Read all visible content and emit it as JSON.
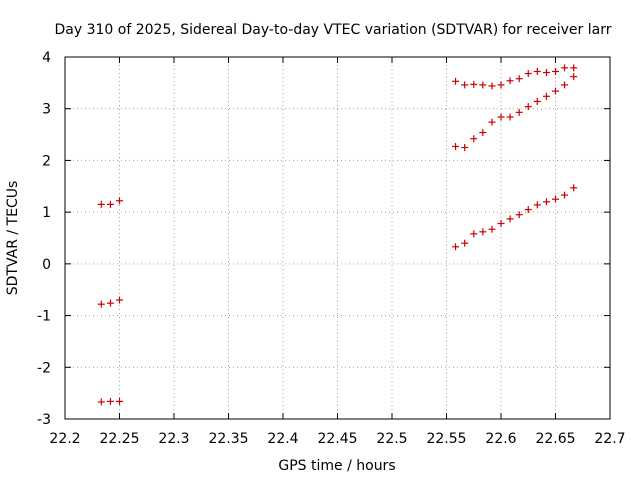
{
  "chart_data": {
    "type": "scatter",
    "title": "Day 310 of 2025, Sidereal Day-to-day VTEC variation (SDTVAR) for receiver larr",
    "xlabel": "GPS time / hours",
    "ylabel": "SDTVAR / TECUs",
    "xlim": [
      22.2,
      22.7
    ],
    "ylim": [
      -3,
      4
    ],
    "xticks": [
      22.2,
      22.25,
      22.3,
      22.35,
      22.4,
      22.45,
      22.5,
      22.55,
      22.6,
      22.65,
      22.7
    ],
    "xtick_labels": [
      "22.2",
      "22.25",
      "22.3",
      "22.35",
      "22.4",
      "22.45",
      "22.5",
      "22.55",
      "22.6",
      "22.65",
      "22.7"
    ],
    "yticks": [
      -3,
      -2,
      -1,
      0,
      1,
      2,
      3,
      4
    ],
    "ytick_labels": [
      "-3",
      "-2",
      "-1",
      "0",
      "1",
      "2",
      "3",
      "4"
    ],
    "grid": true,
    "marker": "+",
    "color": "#cc0000",
    "series": [
      {
        "name": "SDTVAR",
        "points": [
          [
            22.2333,
            1.15
          ],
          [
            22.2417,
            1.15
          ],
          [
            22.25,
            1.22
          ],
          [
            22.2333,
            -0.78
          ],
          [
            22.2417,
            -0.76
          ],
          [
            22.25,
            -0.7
          ],
          [
            22.2333,
            -2.67
          ],
          [
            22.2417,
            -2.66
          ],
          [
            22.25,
            -2.66
          ],
          [
            22.5583,
            3.53
          ],
          [
            22.5667,
            3.46
          ],
          [
            22.575,
            3.47
          ],
          [
            22.5833,
            3.46
          ],
          [
            22.5917,
            3.44
          ],
          [
            22.6,
            3.46
          ],
          [
            22.6083,
            3.54
          ],
          [
            22.6167,
            3.58
          ],
          [
            22.625,
            3.68
          ],
          [
            22.6333,
            3.72
          ],
          [
            22.6417,
            3.7
          ],
          [
            22.65,
            3.72
          ],
          [
            22.6583,
            3.79
          ],
          [
            22.6667,
            3.79
          ],
          [
            22.5583,
            2.27
          ],
          [
            22.5667,
            2.25
          ],
          [
            22.575,
            2.42
          ],
          [
            22.5833,
            2.54
          ],
          [
            22.5917,
            2.74
          ],
          [
            22.6,
            2.84
          ],
          [
            22.6083,
            2.84
          ],
          [
            22.6167,
            2.93
          ],
          [
            22.625,
            3.04
          ],
          [
            22.6333,
            3.14
          ],
          [
            22.6417,
            3.24
          ],
          [
            22.65,
            3.34
          ],
          [
            22.6583,
            3.46
          ],
          [
            22.6667,
            3.62
          ],
          [
            22.5583,
            0.33
          ],
          [
            22.5667,
            0.4
          ],
          [
            22.575,
            0.58
          ],
          [
            22.5833,
            0.62
          ],
          [
            22.5917,
            0.67
          ],
          [
            22.6,
            0.78
          ],
          [
            22.6083,
            0.87
          ],
          [
            22.6167,
            0.95
          ],
          [
            22.625,
            1.05
          ],
          [
            22.6333,
            1.14
          ],
          [
            22.6417,
            1.2
          ],
          [
            22.65,
            1.25
          ],
          [
            22.6583,
            1.33
          ],
          [
            22.6667,
            1.47
          ]
        ]
      }
    ]
  }
}
